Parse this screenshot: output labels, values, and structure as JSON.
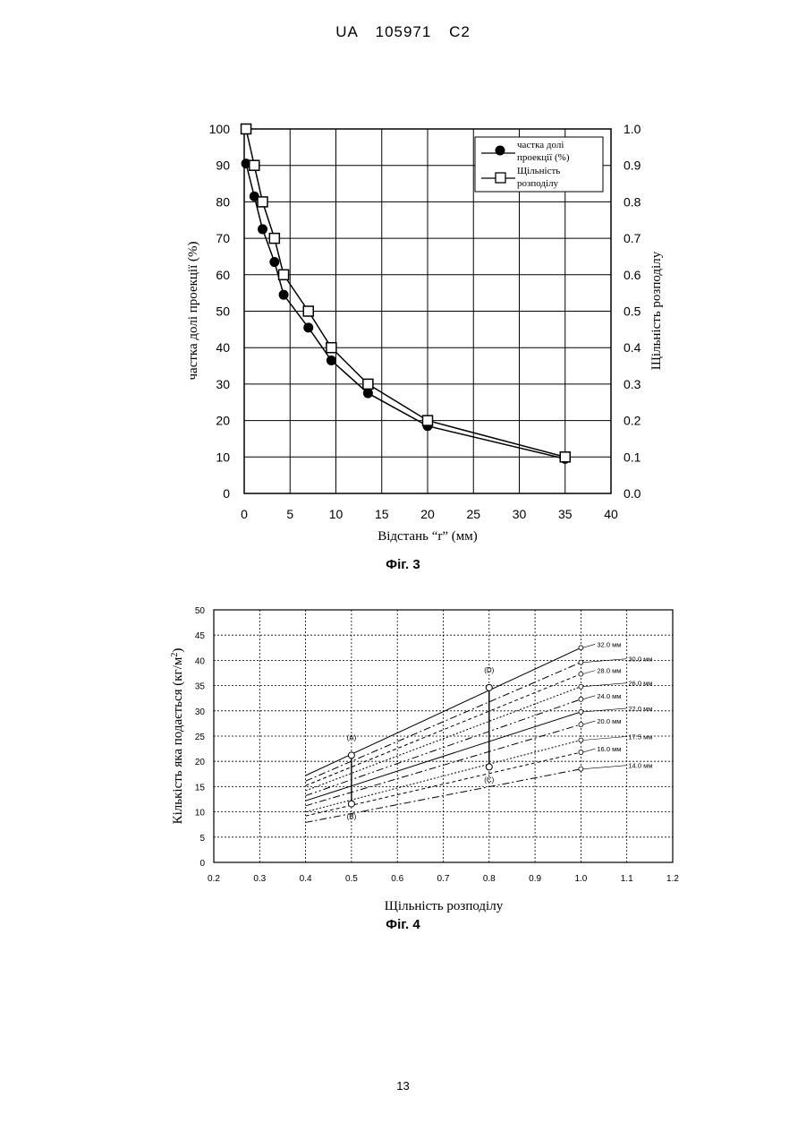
{
  "header": {
    "country": "UA",
    "number": "105971",
    "kind": "C2"
  },
  "page_number": "13",
  "figures": [
    {
      "caption": "Фіг. 3"
    },
    {
      "caption": "Фіг. 4"
    }
  ],
  "chart_data": [
    {
      "type": "line",
      "xlabel": "Відстань “r” (мм)",
      "ylabel_left": "частка долі проекції (%)",
      "ylabel_right": "Щільність розподілу",
      "xlim": [
        0,
        40
      ],
      "ylim_left": [
        0,
        100
      ],
      "ylim_right": [
        0.0,
        1.0
      ],
      "x_ticks": [
        "0",
        "5",
        "10",
        "15",
        "20",
        "25",
        "30",
        "35",
        "40"
      ],
      "y_left_ticks": [
        "0",
        "10",
        "20",
        "30",
        "40",
        "50",
        "60",
        "70",
        "80",
        "90",
        "100"
      ],
      "y_right_ticks": [
        "0.0",
        "0.1",
        "0.2",
        "0.3",
        "0.4",
        "0.5",
        "0.6",
        "0.7",
        "0.8",
        "0.9",
        "1.0"
      ],
      "grid": true,
      "legend_position": "top-right",
      "series": [
        {
          "name": "частка долі проекції (%)",
          "axis": "left",
          "marker": "filled-circle",
          "x": [
            0.2,
            1.1,
            2.0,
            3.3,
            4.3,
            7.0,
            9.5,
            13.5,
            20.0,
            35.0
          ],
          "y": [
            90.5,
            81.5,
            72.5,
            63.5,
            54.5,
            45.5,
            36.5,
            27.5,
            18.5,
            9.5
          ]
        },
        {
          "name": "Щільність розподілу",
          "axis": "right",
          "marker": "open-square",
          "x": [
            0.2,
            1.1,
            2.0,
            3.3,
            4.3,
            7.0,
            9.5,
            13.5,
            20.0,
            35.0
          ],
          "y": [
            1.0,
            0.9,
            0.8,
            0.7,
            0.6,
            0.5,
            0.4,
            0.3,
            0.2,
            0.1
          ]
        }
      ]
    },
    {
      "type": "line",
      "xlabel": "Щільність розподілу",
      "ylabel": "Кількість яка подається (кг/м²)",
      "xlim": [
        0.2,
        1.2
      ],
      "ylim": [
        0,
        50
      ],
      "x_ticks": [
        "0.2",
        "0.3",
        "0.4",
        "0.5",
        "0.6",
        "0.7",
        "0.8",
        "0.9",
        "1.0",
        "1.1",
        "1.2"
      ],
      "y_ticks": [
        "0",
        "5",
        "10",
        "15",
        "20",
        "25",
        "30",
        "35",
        "40",
        "45",
        "50"
      ],
      "grid": true,
      "x_range": [
        0.4,
        1.0
      ],
      "series": [
        {
          "name": "32.0 мм",
          "y": [
            17.2,
            42.5
          ]
        },
        {
          "name": "30.0 мм",
          "y": [
            16.1,
            39.6
          ]
        },
        {
          "name": "28.0 мм",
          "y": [
            15.2,
            37.3
          ]
        },
        {
          "name": "26.0 мм",
          "y": [
            14.2,
            34.8
          ]
        },
        {
          "name": "24.0 мм",
          "y": [
            13.2,
            32.3
          ]
        },
        {
          "name": "22.0 мм",
          "y": [
            12.2,
            29.8
          ]
        },
        {
          "name": "20.0 мм",
          "y": [
            11.2,
            27.3
          ]
        },
        {
          "name": "17.5 мм",
          "y": [
            10.0,
            24.2
          ]
        },
        {
          "name": "16.0 мм",
          "y": [
            9.2,
            21.8
          ]
        },
        {
          "name": "14.0 мм",
          "y": [
            7.9,
            18.5
          ]
        }
      ],
      "annotations": [
        {
          "label": "(A)",
          "x": 0.5,
          "y": 21.2
        },
        {
          "label": "(B)",
          "x": 0.5,
          "y": 11.6
        },
        {
          "label": "(C)",
          "x": 0.8,
          "y": 18.9
        },
        {
          "label": "(D)",
          "x": 0.8,
          "y": 34.6
        }
      ]
    }
  ]
}
